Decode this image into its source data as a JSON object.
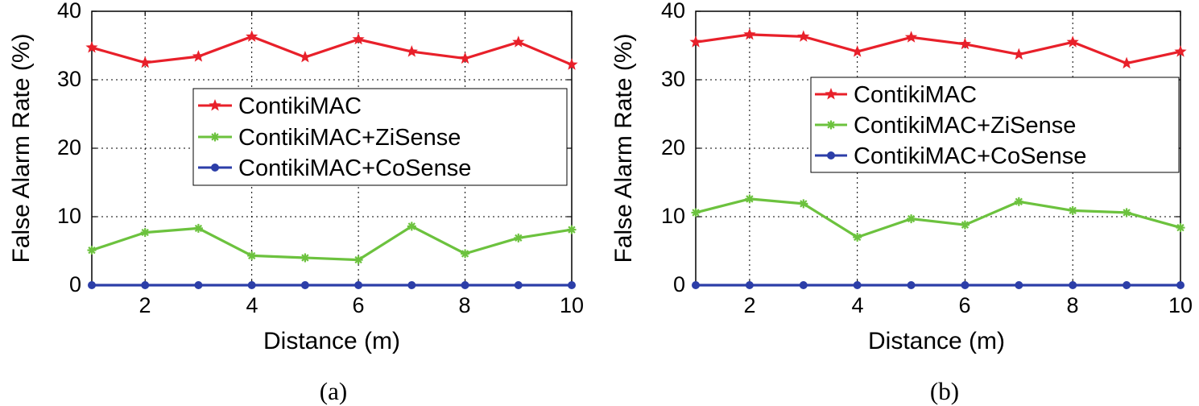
{
  "figure": {
    "colors": {
      "red": "#e8202a",
      "green": "#6cc23e",
      "blue": "#2c3ea8"
    }
  },
  "chart_data": [
    {
      "type": "line",
      "panel_label": "(a)",
      "xlabel": "Distance (m)",
      "ylabel": "False Alarm Rate (%)",
      "xlim": [
        1,
        10
      ],
      "ylim": [
        0,
        40
      ],
      "xticks": [
        "2",
        "4",
        "6",
        "8",
        "10"
      ],
      "yticks": [
        "0",
        "10",
        "20",
        "30",
        "40"
      ],
      "grid": true,
      "legend_position": "center-right",
      "x": [
        1,
        2,
        3,
        4,
        5,
        6,
        7,
        8,
        9,
        10
      ],
      "series": [
        {
          "name": "ContikiMAC",
          "marker": "star",
          "color": "#e8202a",
          "values": [
            34.7,
            32.5,
            33.4,
            36.3,
            33.3,
            35.9,
            34.1,
            33.1,
            35.5,
            32.2
          ]
        },
        {
          "name": "ContikiMAC+ZiSense",
          "marker": "asterisk",
          "color": "#6cc23e",
          "values": [
            5.1,
            7.7,
            8.3,
            4.3,
            4.0,
            3.7,
            8.6,
            4.6,
            6.9,
            8.1
          ]
        },
        {
          "name": "ContikiMAC+CoSense",
          "marker": "circle",
          "color": "#2c3ea8",
          "values": [
            0,
            0,
            0,
            0,
            0,
            0,
            0,
            0,
            0,
            0
          ]
        }
      ]
    },
    {
      "type": "line",
      "panel_label": "(b)",
      "xlabel": "Distance (m)",
      "ylabel": "False Alarm Rate (%)",
      "xlim": [
        1,
        10
      ],
      "ylim": [
        0,
        40
      ],
      "xticks": [
        "2",
        "4",
        "6",
        "8",
        "10"
      ],
      "yticks": [
        "0",
        "10",
        "20",
        "30",
        "40"
      ],
      "grid": true,
      "legend_position": "top-right",
      "x": [
        1,
        2,
        3,
        4,
        5,
        6,
        7,
        8,
        9,
        10
      ],
      "series": [
        {
          "name": "ContikiMAC",
          "marker": "star",
          "color": "#e8202a",
          "values": [
            35.5,
            36.6,
            36.3,
            34.1,
            36.2,
            35.2,
            33.7,
            35.5,
            32.4,
            34.1
          ]
        },
        {
          "name": "ContikiMAC+ZiSense",
          "marker": "asterisk",
          "color": "#6cc23e",
          "values": [
            10.6,
            12.6,
            11.9,
            7.0,
            9.7,
            8.8,
            12.2,
            10.9,
            10.6,
            8.4
          ]
        },
        {
          "name": "ContikiMAC+CoSense",
          "marker": "circle",
          "color": "#2c3ea8",
          "values": [
            0,
            0,
            0,
            0,
            0,
            0,
            0,
            0,
            0,
            0
          ]
        }
      ]
    }
  ]
}
